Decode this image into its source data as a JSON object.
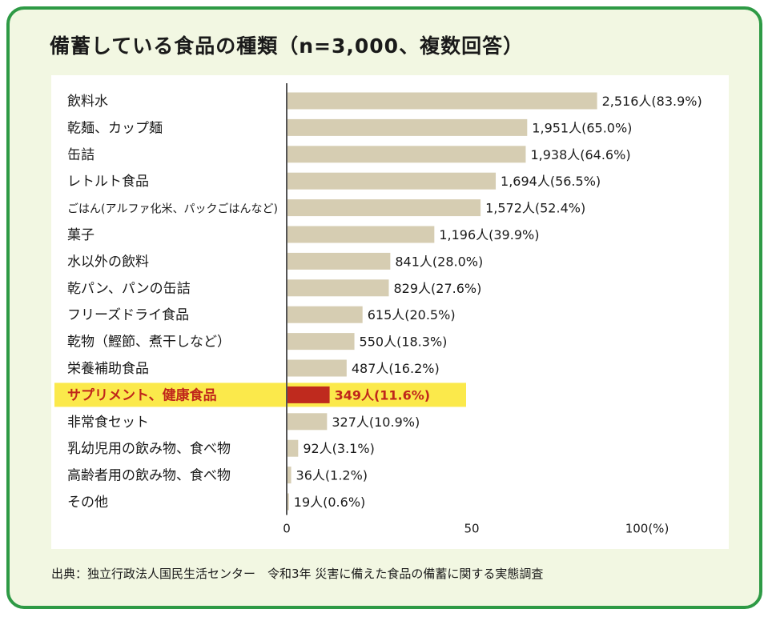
{
  "title": "備蓄している食品の種類（n=3,000、複数回答）",
  "source": "出典：独立行政法人国民生活センター　令和3年 災害に備えた食品の備蓄に関する実態調査",
  "colors": {
    "bar": "#d6cdb2",
    "highlight_bar": "#bf2a1e",
    "highlight_band": "#fbe94b",
    "highlight_text": "#c0261b",
    "text": "#1a1a1a",
    "axis": "#555555",
    "frame": "#2e9a45",
    "background": "#f2f7e2"
  },
  "chart_data": {
    "type": "bar",
    "orientation": "horizontal",
    "categories": [
      "飲料水",
      "乾麺、カップ麺",
      "缶詰",
      "レトルト食品",
      "ごはん(アルファ化米、パックごはんなど)",
      "菓子",
      "水以外の飲料",
      "乾パン、パンの缶詰",
      "フリーズドライ食品",
      "乾物（鰹節、煮干しなど）",
      "栄養補助食品",
      "サプリメント、健康食品",
      "非常食セット",
      "乳幼児用の飲み物、食べ物",
      "高齢者用の飲み物、食べ物",
      "その他"
    ],
    "values": [
      83.9,
      65.0,
      64.6,
      56.5,
      52.4,
      39.9,
      28.0,
      27.6,
      20.5,
      18.3,
      16.2,
      11.6,
      10.9,
      3.1,
      1.2,
      0.6
    ],
    "data_labels": [
      "2,516人(83.9%)",
      "1,951人(65.0%)",
      "1,938人(64.6%)",
      "1,694人(56.5%)",
      "1,572人(52.4%)",
      "1,196人(39.9%)",
      "841人(28.0%)",
      "829人(27.6%)",
      "615人(20.5%)",
      "550人(18.3%)",
      "487人(16.2%)",
      "349人(11.6%)",
      "327人(10.9%)",
      "92人(3.1%)",
      "36人(1.2%)",
      "19人(0.6%)"
    ],
    "highlight_index": 11,
    "xlim": [
      0,
      100
    ],
    "x_ticks": [
      0,
      50,
      100
    ],
    "x_tick_labels": [
      "0",
      "50",
      "100(%)"
    ],
    "xlabel": "",
    "ylabel": "",
    "grid": false,
    "legend": "none"
  }
}
